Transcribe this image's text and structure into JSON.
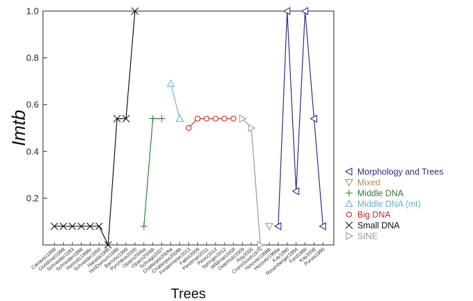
{
  "chart_data": {
    "type": "line",
    "xlabel": "Trees",
    "ylabel": "Imtb",
    "ylim": [
      0,
      1.0
    ],
    "yticks": [
      0.2,
      0.4,
      0.6,
      0.8,
      1.0
    ],
    "ytick_labels": [
      "0.2",
      "0.4",
      "0.6",
      "0.8",
      "1.0"
    ],
    "grid": false,
    "legend_position": "right",
    "categories": [
      "Canavez1999",
      "Goodman1998",
      "Schneider1993",
      "Schneider1996",
      "Horovitz1998c",
      "Schneider2000",
      "Harada1995",
      "VonDornum1999",
      "Barroso1999",
      "Pyrchikov2005",
      "Opazo2006a",
      "Opazo2006b",
      "Schrago2007",
      "Chatterjee2009a",
      "Chatterjee2009b",
      "Finstermeier2013",
      "Fabre2009",
      "Perelman2011",
      "Perez2012",
      "Springer2012",
      "Wildman2009",
      "Osterholz2009",
      "Ray2005",
      "CronnSinoh1975",
      "Horovitz1998b",
      "Horovitz1998a",
      "Kay1990",
      "Rosenberger1984",
      "Ford1986",
      "Kay2008",
      "Purvis1995"
    ],
    "series": [
      {
        "name": "Morphology and Trees",
        "color": "#2b2a8c",
        "marker": "triangle-left",
        "x": [
          "Horovitz1998a",
          "Kay1990",
          "Rosenberger1984",
          "Ford1986",
          "Kay2008",
          "Purvis1995"
        ],
        "y": [
          0.08,
          1.0,
          0.23,
          1.0,
          0.54,
          0.08
        ]
      },
      {
        "name": "Mixed",
        "color": "#b88a4e",
        "marker": "triangle-down",
        "x": [
          "Horovitz1998b"
        ],
        "y": [
          0.08
        ]
      },
      {
        "name": "Middle DNA",
        "color": "#2e7d32",
        "marker": "plus",
        "x": [
          "Opazo2006a",
          "Opazo2006b",
          "Schrago2007"
        ],
        "y": [
          0.08,
          0.54,
          0.54
        ]
      },
      {
        "name": "Middle DNA (mt)",
        "color": "#62b3d0",
        "marker": "triangle-up",
        "x": [
          "Chatterjee2009a",
          "Chatterjee2009b"
        ],
        "y": [
          0.69,
          0.54
        ]
      },
      {
        "name": "Big DNA",
        "color": "#c62828",
        "marker": "circle",
        "x": [
          "Finstermeier2013",
          "Fabre2009",
          "Perelman2011",
          "Perez2012",
          "Springer2012",
          "Wildman2009"
        ],
        "y": [
          0.5,
          0.54,
          0.54,
          0.54,
          0.54,
          0.54
        ]
      },
      {
        "name": "Small DNA",
        "color": "#111111",
        "marker": "x",
        "x": [
          "Canavez1999",
          "Goodman1998",
          "Schneider1993",
          "Schneider1996",
          "Horovitz1998c",
          "Schneider2000",
          "Harada1995",
          "VonDornum1999",
          "Barroso1999",
          "Pyrchikov2005"
        ],
        "y": [
          0.08,
          0.08,
          0.08,
          0.08,
          0.08,
          0.08,
          0.0,
          0.54,
          0.54,
          1.0
        ]
      },
      {
        "name": "SINE",
        "color": "#999999",
        "marker": "triangle-right",
        "x": [
          "Osterholz2009",
          "Ray2005",
          "CronnSinoh1975"
        ],
        "y": [
          0.54,
          0.5,
          0.0
        ]
      }
    ]
  }
}
